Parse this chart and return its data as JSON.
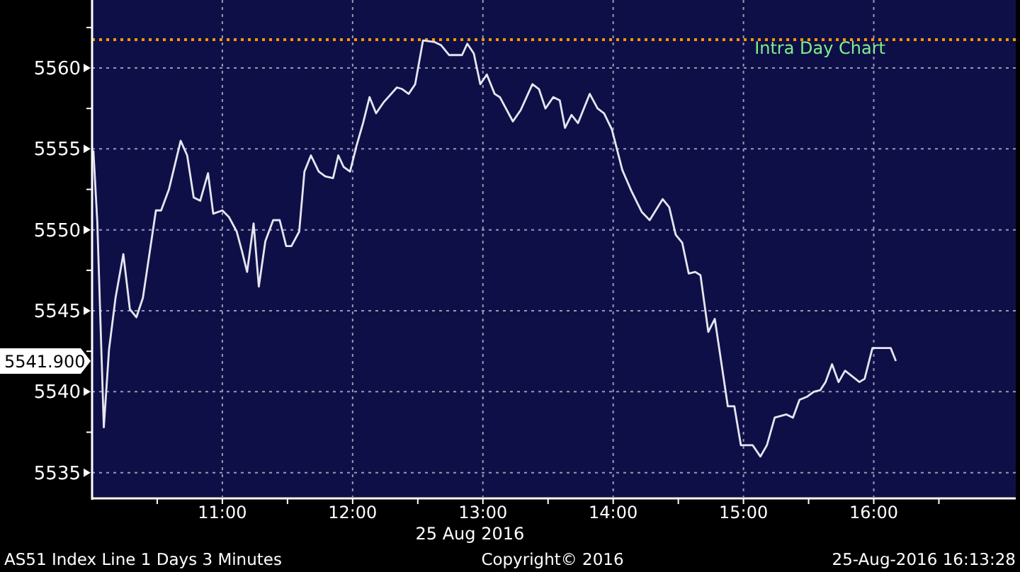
{
  "chart_data": {
    "type": "line",
    "title": "Intra Day Chart",
    "xlabel": "25 Aug 2016",
    "xlim": [
      10,
      17.09
    ],
    "xticks": [
      {
        "value": 10.5,
        "label": null
      },
      {
        "value": 11,
        "label": "11:00"
      },
      {
        "value": 11.5,
        "label": null
      },
      {
        "value": 12,
        "label": "12:00"
      },
      {
        "value": 12.5,
        "label": null
      },
      {
        "value": 13,
        "label": "13:00"
      },
      {
        "value": 13.5,
        "label": null
      },
      {
        "value": 14,
        "label": "14:00"
      },
      {
        "value": 14.5,
        "label": null
      },
      {
        "value": 15,
        "label": "15:00"
      },
      {
        "value": 15.5,
        "label": null
      },
      {
        "value": 16,
        "label": "16:00"
      },
      {
        "value": 16.5,
        "label": null
      }
    ],
    "ylim": [
      5533.5,
      5564.2
    ],
    "yticks": [
      5535,
      {
        "value": 5537.5,
        "label": null
      },
      5540,
      {
        "value": 5542.5,
        "label": null
      },
      5545,
      {
        "value": 5547.5,
        "label": null
      },
      5550,
      {
        "value": 5552.5,
        "label": null
      },
      5555,
      {
        "value": 5557.5,
        "label": null
      },
      5560,
      {
        "value": 5562.5,
        "label": null
      }
    ],
    "grid": true,
    "marker": "none",
    "line_style": "solid",
    "ref_lines": [
      {
        "axis": "y",
        "value": 5561.75,
        "color": "#ff9900",
        "line_style": "dotted"
      }
    ],
    "annotations": [
      "5541.900",
      "AS51 Index Line 1 Days 3 Minutes",
      "Copyright© 2016",
      "25-Aug-2016 16:13:28"
    ],
    "series": [
      {
        "color": "#e6e6f0",
        "x": [
          10.01,
          10.04,
          10.09,
          10.13,
          10.18,
          10.24,
          10.29,
          10.34,
          10.39,
          10.49,
          10.53,
          10.59,
          10.68,
          10.73,
          10.78,
          10.83,
          10.89,
          10.93,
          11.0,
          11.05,
          11.11,
          11.15,
          11.19,
          11.24,
          11.28,
          11.33,
          11.39,
          11.44,
          11.49,
          11.53,
          11.59,
          11.63,
          11.68,
          11.74,
          11.79,
          11.85,
          11.89,
          11.93,
          11.98,
          12.03,
          12.08,
          12.13,
          12.18,
          12.24,
          12.34,
          12.38,
          12.43,
          12.48,
          12.54,
          12.63,
          12.68,
          12.74,
          12.84,
          12.88,
          12.93,
          12.98,
          13.03,
          13.09,
          13.13,
          13.23,
          13.29,
          13.38,
          13.43,
          13.48,
          13.54,
          13.59,
          13.63,
          13.68,
          13.73,
          13.82,
          13.88,
          13.93,
          13.99,
          14.07,
          14.14,
          14.22,
          14.28,
          14.38,
          14.43,
          14.48,
          14.53,
          14.58,
          14.63,
          14.67,
          14.73,
          14.78,
          14.88,
          14.93,
          14.98,
          15.07,
          15.13,
          15.18,
          15.24,
          15.33,
          15.38,
          15.43,
          15.49,
          15.54,
          15.59,
          15.63,
          15.68,
          15.73,
          15.78,
          15.89,
          15.93,
          15.99,
          16.13,
          16.17
        ],
        "values": [
          5554.9,
          5550.5,
          5537.8,
          5542.6,
          5545.8,
          5548.5,
          5545.1,
          5544.6,
          5545.8,
          5551.2,
          5551.2,
          5552.5,
          5555.5,
          5554.6,
          5552.0,
          5551.8,
          5553.5,
          5551.0,
          5551.2,
          5550.8,
          5549.9,
          5548.7,
          5547.4,
          5550.4,
          5546.5,
          5549.3,
          5550.6,
          5550.6,
          5549.0,
          5549.0,
          5549.9,
          5553.6,
          5554.6,
          5553.6,
          5553.3,
          5553.2,
          5554.6,
          5553.9,
          5553.6,
          5555.2,
          5556.6,
          5558.2,
          5557.2,
          5557.9,
          5558.8,
          5558.7,
          5558.4,
          5559.0,
          5561.7,
          5561.6,
          5561.4,
          5560.8,
          5560.8,
          5561.5,
          5560.9,
          5559.0,
          5559.6,
          5558.4,
          5558.2,
          5556.7,
          5557.4,
          5559.0,
          5558.7,
          5557.5,
          5558.2,
          5558.0,
          5556.3,
          5557.1,
          5556.6,
          5558.4,
          5557.5,
          5557.2,
          5556.2,
          5553.7,
          5552.4,
          5551.1,
          5550.6,
          5551.9,
          5551.4,
          5549.7,
          5549.2,
          5547.3,
          5547.4,
          5547.2,
          5543.7,
          5544.5,
          5539.1,
          5539.1,
          5536.7,
          5536.7,
          5536.0,
          5536.7,
          5538.4,
          5538.6,
          5538.4,
          5539.5,
          5539.7,
          5540.0,
          5540.1,
          5540.6,
          5541.7,
          5540.6,
          5541.3,
          5540.6,
          5540.8,
          5542.7,
          5542.7,
          5541.9
        ]
      }
    ]
  }
}
